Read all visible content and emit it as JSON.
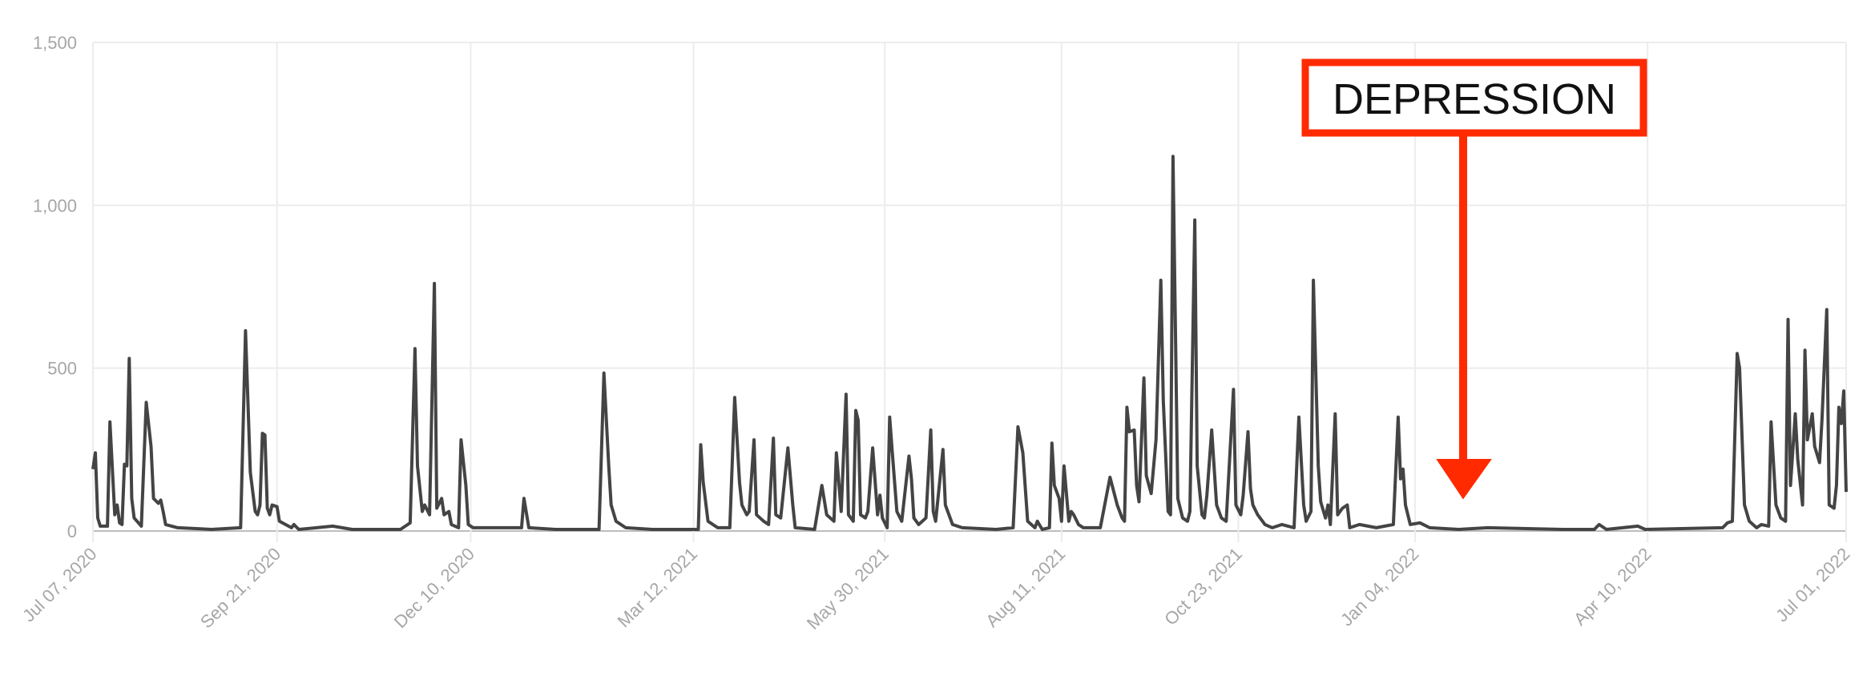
{
  "chart_data": {
    "type": "line",
    "color": "#444444",
    "grid": true,
    "annotation": "DEPRESSION",
    "annotation_color": "#ff2a00",
    "xlim": [
      "2020-07-07",
      "2022-07-01"
    ],
    "xticks": [
      {
        "value": "2020-07-07",
        "label": "Jul 07, 2020"
      },
      {
        "value": "2020-09-21",
        "label": "Sep 21, 2020"
      },
      {
        "value": "2020-12-10",
        "label": "Dec 10, 2020"
      },
      {
        "value": "2021-03-12",
        "label": "Mar 12, 2021"
      },
      {
        "value": "2021-05-30",
        "label": "May 30, 2021"
      },
      {
        "value": "2021-08-11",
        "label": "Aug 11, 2021"
      },
      {
        "value": "2021-10-23",
        "label": "Oct 23, 2021"
      },
      {
        "value": "2022-01-04",
        "label": "Jan 04, 2022"
      },
      {
        "value": "2022-04-10",
        "label": "Apr 10, 2022"
      },
      {
        "value": "2022-07-01",
        "label": "Jul 01, 2022"
      }
    ],
    "ylim": [
      0,
      1500
    ],
    "yticks": [
      0,
      500,
      {
        "value": 1000,
        "label": "1,000"
      },
      {
        "value": 1500,
        "label": "1,500"
      }
    ],
    "x": [
      "2020-07-07",
      "2020-07-08",
      "2020-07-09",
      "2020-07-10",
      "2020-07-13",
      "2020-07-14",
      "2020-07-16",
      "2020-07-17",
      "2020-07-18",
      "2020-07-19",
      "2020-07-20",
      "2020-07-21",
      "2020-07-22",
      "2020-07-23",
      "2020-07-24",
      "2020-07-27",
      "2020-07-29",
      "2020-07-31",
      "2020-08-01",
      "2020-08-03",
      "2020-08-04",
      "2020-08-05",
      "2020-08-06",
      "2020-08-11",
      "2020-08-25",
      "2020-09-06",
      "2020-09-08",
      "2020-09-10",
      "2020-09-12",
      "2020-09-13",
      "2020-09-14",
      "2020-09-15",
      "2020-09-16",
      "2020-09-17",
      "2020-09-18",
      "2020-09-19",
      "2020-09-21",
      "2020-09-22",
      "2020-09-27",
      "2020-09-28",
      "2020-09-30",
      "2020-10-14",
      "2020-10-22",
      "2020-11-11",
      "2020-11-15",
      "2020-11-17",
      "2020-11-18",
      "2020-11-20",
      "2020-11-21",
      "2020-11-23",
      "2020-11-25",
      "2020-11-26",
      "2020-11-28",
      "2020-11-29",
      "2020-12-01",
      "2020-12-02",
      "2020-12-05",
      "2020-12-06",
      "2020-12-08",
      "2020-12-09",
      "2020-12-11",
      "2020-12-23",
      "2020-12-31",
      "2021-01-01",
      "2021-01-03",
      "2021-01-14",
      "2021-02-01",
      "2021-02-03",
      "2021-02-05",
      "2021-02-06",
      "2021-02-08",
      "2021-02-12",
      "2021-02-23",
      "2021-03-10",
      "2021-03-14",
      "2021-03-15",
      "2021-03-16",
      "2021-03-18",
      "2021-03-22",
      "2021-03-27",
      "2021-03-29",
      "2021-03-31",
      "2021-04-01",
      "2021-04-03",
      "2021-04-04",
      "2021-04-06",
      "2021-04-07",
      "2021-04-10",
      "2021-04-12",
      "2021-04-14",
      "2021-04-15",
      "2021-04-17",
      "2021-04-20",
      "2021-04-22",
      "2021-04-23",
      "2021-05-01",
      "2021-05-04",
      "2021-05-06",
      "2021-05-09",
      "2021-05-10",
      "2021-05-12",
      "2021-05-14",
      "2021-05-15",
      "2021-05-17",
      "2021-05-18",
      "2021-05-19",
      "2021-05-20",
      "2021-05-22",
      "2021-05-23",
      "2021-05-25",
      "2021-05-27",
      "2021-05-28",
      "2021-05-29",
      "2021-05-31",
      "2021-06-01",
      "2021-06-02",
      "2021-06-04",
      "2021-06-06",
      "2021-06-09",
      "2021-06-10",
      "2021-06-11",
      "2021-06-13",
      "2021-06-16",
      "2021-06-18",
      "2021-06-19",
      "2021-06-20",
      "2021-06-23",
      "2021-06-24",
      "2021-06-27",
      "2021-07-01",
      "2021-07-15",
      "2021-07-22",
      "2021-07-24",
      "2021-07-26",
      "2021-07-28",
      "2021-07-31",
      "2021-08-01",
      "2021-08-03",
      "2021-08-06",
      "2021-08-07",
      "2021-08-08",
      "2021-08-10",
      "2021-08-11",
      "2021-08-12",
      "2021-08-14",
      "2021-08-15",
      "2021-08-16",
      "2021-08-18",
      "2021-08-20",
      "2021-08-27",
      "2021-08-31",
      "2021-09-03",
      "2021-09-05",
      "2021-09-06",
      "2021-09-07",
      "2021-09-08",
      "2021-09-10",
      "2021-09-11",
      "2021-09-12",
      "2021-09-14",
      "2021-09-15",
      "2021-09-17",
      "2021-09-19",
      "2021-09-21",
      "2021-09-22",
      "2021-09-24",
      "2021-09-25",
      "2021-09-26",
      "2021-09-28",
      "2021-09-30",
      "2021-10-02",
      "2021-10-03",
      "2021-10-05",
      "2021-10-06",
      "2021-10-08",
      "2021-10-09",
      "2021-10-10",
      "2021-10-12",
      "2021-10-14",
      "2021-10-16",
      "2021-10-18",
      "2021-10-21",
      "2021-10-22",
      "2021-10-24",
      "2021-10-25",
      "2021-10-27",
      "2021-10-28",
      "2021-10-29",
      "2021-10-31",
      "2021-11-03",
      "2021-11-06",
      "2021-11-10",
      "2021-11-15",
      "2021-11-17",
      "2021-11-19",
      "2021-11-20",
      "2021-11-22",
      "2021-11-23",
      "2021-11-25",
      "2021-11-26",
      "2021-11-28",
      "2021-11-29",
      "2021-11-30",
      "2021-12-02",
      "2021-12-03",
      "2021-12-05",
      "2021-12-07",
      "2021-12-08",
      "2021-12-12",
      "2021-12-19",
      "2021-12-26",
      "2021-12-28",
      "2021-12-29",
      "2021-12-30",
      "2021-12-31",
      "2022-01-02",
      "2022-01-06",
      "2022-01-10",
      "2022-01-22",
      "2022-02-03",
      "2022-03-06",
      "2022-03-19",
      "2022-03-21",
      "2022-03-24",
      "2022-04-06",
      "2022-04-09",
      "2022-05-11",
      "2022-05-13",
      "2022-05-15",
      "2022-05-17",
      "2022-05-18",
      "2022-05-20",
      "2022-05-22",
      "2022-05-25",
      "2022-05-27",
      "2022-05-30",
      "2022-05-31",
      "2022-06-02",
      "2022-06-04",
      "2022-06-06",
      "2022-06-07",
      "2022-06-08",
      "2022-06-10",
      "2022-06-11",
      "2022-06-13",
      "2022-06-14",
      "2022-06-15",
      "2022-06-17",
      "2022-06-18",
      "2022-06-20",
      "2022-06-21",
      "2022-06-23",
      "2022-06-24",
      "2022-06-26",
      "2022-06-27",
      "2022-06-28",
      "2022-06-29",
      "2022-06-30",
      "2022-07-01"
    ],
    "values": [
      190,
      240,
      40,
      15,
      15,
      335,
      50,
      80,
      25,
      20,
      205,
      200,
      530,
      100,
      40,
      15,
      395,
      260,
      100,
      85,
      95,
      60,
      20,
      10,
      5,
      10,
      615,
      180,
      60,
      50,
      80,
      300,
      295,
      70,
      50,
      80,
      75,
      30,
      10,
      20,
      5,
      15,
      5,
      5,
      25,
      560,
      200,
      60,
      80,
      50,
      760,
      70,
      100,
      50,
      60,
      20,
      10,
      280,
      140,
      20,
      10,
      10,
      10,
      100,
      10,
      5,
      5,
      485,
      200,
      80,
      30,
      10,
      5,
      5,
      5,
      265,
      150,
      30,
      10,
      10,
      410,
      150,
      80,
      50,
      60,
      280,
      50,
      30,
      20,
      285,
      50,
      40,
      255,
      80,
      10,
      5,
      140,
      50,
      30,
      240,
      60,
      420,
      50,
      30,
      370,
      340,
      50,
      40,
      60,
      255,
      50,
      110,
      40,
      10,
      350,
      250,
      60,
      30,
      230,
      160,
      40,
      20,
      40,
      310,
      60,
      30,
      250,
      80,
      20,
      10,
      5,
      10,
      320,
      240,
      30,
      10,
      30,
      5,
      10,
      270,
      140,
      100,
      30,
      200,
      30,
      60,
      50,
      20,
      10,
      10,
      165,
      80,
      40,
      30,
      380,
      305,
      310,
      140,
      90,
      470,
      170,
      115,
      280,
      770,
      400,
      60,
      50,
      1150,
      100,
      40,
      30,
      60,
      955,
      200,
      50,
      40,
      110,
      310,
      80,
      40,
      30,
      435,
      80,
      50,
      110,
      305,
      130,
      80,
      50,
      20,
      10,
      20,
      10,
      350,
      80,
      30,
      60,
      770,
      200,
      90,
      40,
      80,
      20,
      360,
      50,
      70,
      80,
      10,
      20,
      10,
      20,
      350,
      160,
      190,
      80,
      20,
      25,
      10,
      5,
      10,
      5,
      5,
      20,
      5,
      15,
      5,
      10,
      25,
      30,
      545,
      500,
      80,
      30,
      10,
      20,
      15,
      335,
      80,
      40,
      30,
      650,
      140,
      360,
      220,
      80,
      555,
      280,
      360,
      260,
      210,
      340,
      680,
      80,
      70,
      140,
      380,
      330,
      430,
      120
    ]
  }
}
